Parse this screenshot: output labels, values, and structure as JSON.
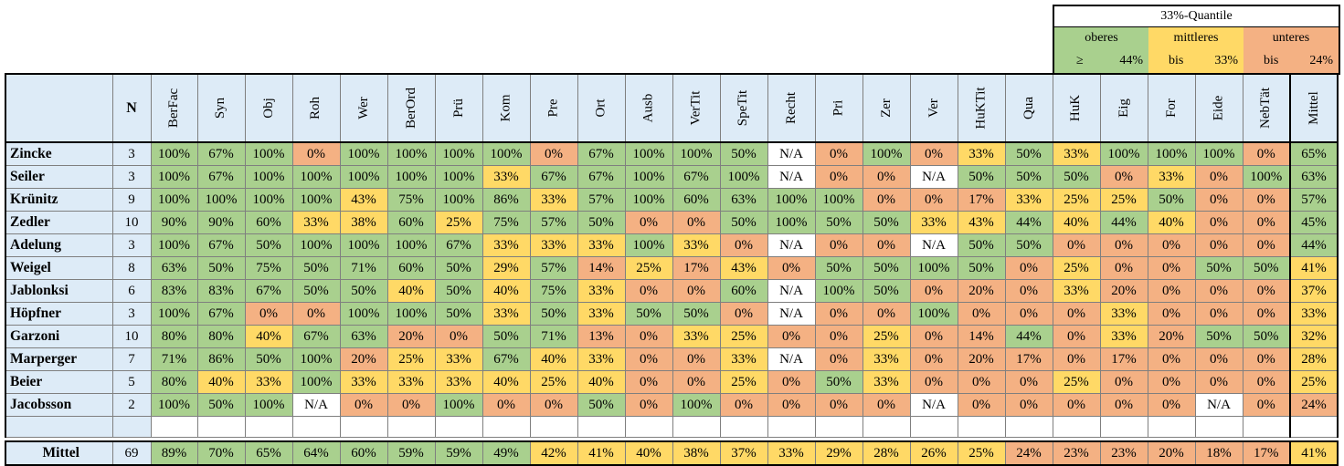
{
  "legend": {
    "title": "33%-Quantile",
    "upper": {
      "label": "oberes",
      "op": "≥",
      "val": "44%"
    },
    "middle": {
      "label": "mittleres",
      "op": "bis",
      "val": "33%"
    },
    "lower": {
      "label": "unteres",
      "op": "bis",
      "val": "24%"
    }
  },
  "headers": {
    "n": "N",
    "cols": [
      "BerFac",
      "Syn",
      "Obj",
      "Roh",
      "Wer",
      "BerOrd",
      "Prü",
      "Kom",
      "Pre",
      "Ort",
      "Ausb",
      "VerTit",
      "SpeTit",
      "Recht",
      "Pri",
      "Zer",
      "Ver",
      "HuKTit",
      "Qua",
      "HuK",
      "Eig",
      "For",
      "Eide",
      "NebTät",
      "Mittel"
    ]
  },
  "rows": [
    {
      "name": "Zincke",
      "n": "3",
      "v": [
        "100%",
        "67%",
        "100%",
        "0%",
        "100%",
        "100%",
        "100%",
        "100%",
        "0%",
        "67%",
        "100%",
        "100%",
        "50%",
        "N/A",
        "0%",
        "100%",
        "0%",
        "33%",
        "50%",
        "33%",
        "100%",
        "100%",
        "100%",
        "0%",
        "65%"
      ]
    },
    {
      "name": "Seiler",
      "n": "3",
      "v": [
        "100%",
        "67%",
        "100%",
        "100%",
        "100%",
        "100%",
        "100%",
        "33%",
        "67%",
        "67%",
        "100%",
        "67%",
        "100%",
        "N/A",
        "0%",
        "0%",
        "N/A",
        "50%",
        "50%",
        "50%",
        "0%",
        "33%",
        "0%",
        "100%",
        "63%"
      ]
    },
    {
      "name": "Krünitz",
      "n": "9",
      "v": [
        "100%",
        "100%",
        "100%",
        "100%",
        "43%",
        "75%",
        "100%",
        "86%",
        "33%",
        "57%",
        "100%",
        "60%",
        "63%",
        "100%",
        "100%",
        "0%",
        "0%",
        "17%",
        "33%",
        "25%",
        "25%",
        "50%",
        "0%",
        "0%",
        "57%"
      ]
    },
    {
      "name": "Zedler",
      "n": "10",
      "v": [
        "90%",
        "90%",
        "60%",
        "33%",
        "38%",
        "60%",
        "25%",
        "75%",
        "57%",
        "50%",
        "0%",
        "0%",
        "50%",
        "100%",
        "50%",
        "50%",
        "33%",
        "43%",
        "44%",
        "40%",
        "44%",
        "40%",
        "0%",
        "0%",
        "45%"
      ]
    },
    {
      "name": "Adelung",
      "n": "3",
      "v": [
        "100%",
        "67%",
        "50%",
        "100%",
        "100%",
        "100%",
        "67%",
        "33%",
        "33%",
        "33%",
        "100%",
        "33%",
        "0%",
        "N/A",
        "0%",
        "0%",
        "N/A",
        "50%",
        "50%",
        "0%",
        "0%",
        "0%",
        "0%",
        "0%",
        "44%"
      ]
    },
    {
      "name": "Weigel",
      "n": "8",
      "v": [
        "63%",
        "50%",
        "75%",
        "50%",
        "71%",
        "60%",
        "50%",
        "29%",
        "57%",
        "14%",
        "25%",
        "17%",
        "43%",
        "0%",
        "50%",
        "50%",
        "100%",
        "50%",
        "0%",
        "25%",
        "0%",
        "0%",
        "50%",
        "50%",
        "41%"
      ]
    },
    {
      "name": "Jablonksi",
      "n": "6",
      "v": [
        "83%",
        "83%",
        "67%",
        "50%",
        "50%",
        "40%",
        "50%",
        "40%",
        "75%",
        "33%",
        "0%",
        "0%",
        "60%",
        "N/A",
        "100%",
        "50%",
        "0%",
        "20%",
        "0%",
        "33%",
        "20%",
        "0%",
        "0%",
        "0%",
        "37%"
      ]
    },
    {
      "name": "Höpfner",
      "n": "3",
      "v": [
        "100%",
        "67%",
        "0%",
        "0%",
        "100%",
        "100%",
        "50%",
        "33%",
        "50%",
        "33%",
        "50%",
        "50%",
        "0%",
        "N/A",
        "0%",
        "0%",
        "100%",
        "0%",
        "0%",
        "0%",
        "33%",
        "0%",
        "0%",
        "0%",
        "33%"
      ]
    },
    {
      "name": "Garzoni",
      "n": "10",
      "v": [
        "80%",
        "80%",
        "40%",
        "67%",
        "63%",
        "20%",
        "0%",
        "50%",
        "71%",
        "13%",
        "0%",
        "33%",
        "25%",
        "0%",
        "0%",
        "25%",
        "0%",
        "14%",
        "44%",
        "0%",
        "33%",
        "20%",
        "50%",
        "50%",
        "32%"
      ]
    },
    {
      "name": "Marperger",
      "n": "7",
      "v": [
        "71%",
        "86%",
        "50%",
        "100%",
        "20%",
        "25%",
        "33%",
        "67%",
        "40%",
        "33%",
        "0%",
        "0%",
        "33%",
        "N/A",
        "0%",
        "33%",
        "0%",
        "20%",
        "17%",
        "0%",
        "17%",
        "0%",
        "0%",
        "0%",
        "28%"
      ]
    },
    {
      "name": "Beier",
      "n": "5",
      "v": [
        "80%",
        "40%",
        "33%",
        "100%",
        "33%",
        "33%",
        "33%",
        "40%",
        "25%",
        "40%",
        "0%",
        "0%",
        "25%",
        "0%",
        "50%",
        "33%",
        "0%",
        "0%",
        "0%",
        "25%",
        "0%",
        "0%",
        "0%",
        "0%",
        "25%"
      ]
    },
    {
      "name": "Jacobsson",
      "n": "2",
      "v": [
        "100%",
        "50%",
        "100%",
        "N/A",
        "0%",
        "0%",
        "100%",
        "0%",
        "0%",
        "50%",
        "0%",
        "100%",
        "0%",
        "0%",
        "0%",
        "0%",
        "N/A",
        "0%",
        "0%",
        "0%",
        "0%",
        "0%",
        "N/A",
        "0%",
        "24%"
      ]
    }
  ],
  "mittel": {
    "name": "Mittel",
    "n": "69",
    "v": [
      "89%",
      "70%",
      "65%",
      "64%",
      "60%",
      "59%",
      "59%",
      "49%",
      "42%",
      "41%",
      "40%",
      "38%",
      "37%",
      "33%",
      "29%",
      "28%",
      "26%",
      "25%",
      "24%",
      "23%",
      "23%",
      "20%",
      "18%",
      "17%",
      "41%"
    ]
  }
}
